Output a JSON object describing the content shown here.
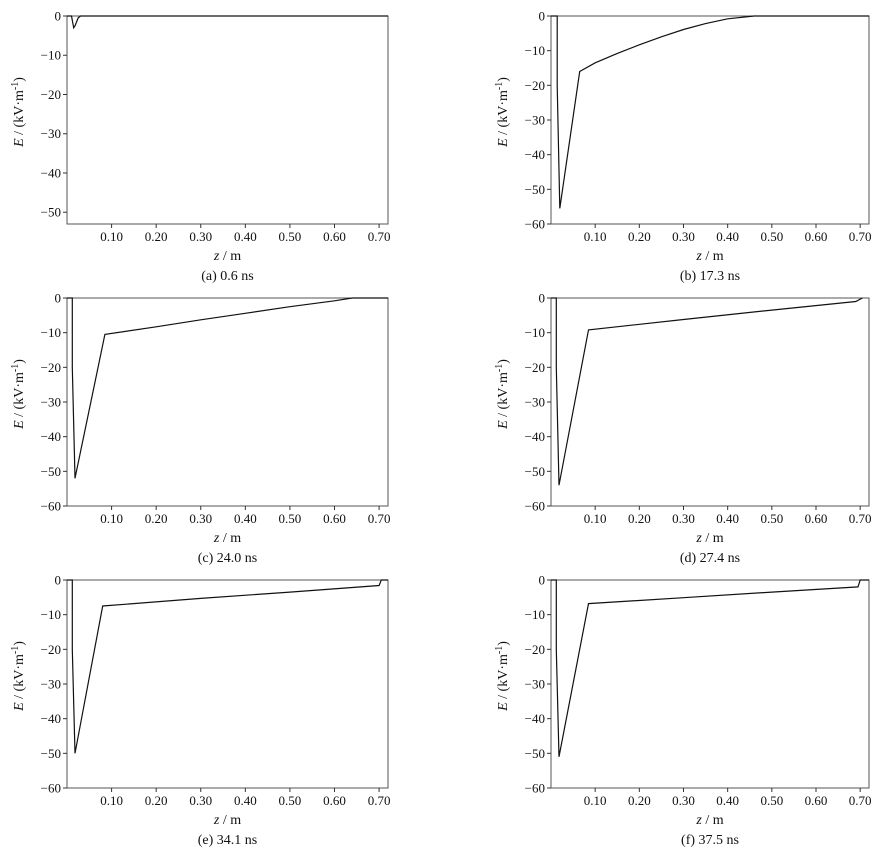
{
  "chart_data": [
    {
      "type": "line",
      "caption": "(a) 0.6 ns",
      "xlabel_var": "z",
      "xlabel_unit": " / m",
      "ylabel_var": "E",
      "ylabel_unit": " / (kV·m",
      "ylabel_exp": "-1",
      "ylabel_close": ")",
      "xlim": [
        0,
        0.72
      ],
      "ylim": [
        -53,
        0
      ],
      "xticks": [
        0.1,
        0.2,
        0.3,
        0.4,
        0.5,
        0.6,
        0.7
      ],
      "xtick_labels": [
        "0.10",
        "0.20",
        "0.30",
        "0.40",
        "0.50",
        "0.60",
        "0.70"
      ],
      "yticks": [
        0,
        -10,
        -20,
        -30,
        -40,
        -50
      ],
      "ytick_labels": [
        "0",
        "−10",
        "−20",
        "−30",
        "−40",
        "−50"
      ],
      "x": [
        0.0,
        0.01,
        0.015,
        0.018,
        0.025,
        0.03,
        0.72
      ],
      "y": [
        0,
        0,
        -3,
        -2.5,
        -0.5,
        0,
        0
      ]
    },
    {
      "type": "line",
      "caption": "(b) 17.3 ns",
      "xlabel_var": "z",
      "xlabel_unit": " / m",
      "ylabel_var": "E",
      "ylabel_unit": " / (kV·m",
      "ylabel_exp": "-1",
      "ylabel_close": ")",
      "xlim": [
        0,
        0.72
      ],
      "ylim": [
        -60,
        0
      ],
      "xticks": [
        0.1,
        0.2,
        0.3,
        0.4,
        0.5,
        0.6,
        0.7
      ],
      "xtick_labels": [
        "0.10",
        "0.20",
        "0.30",
        "0.40",
        "0.50",
        "0.60",
        "0.70"
      ],
      "yticks": [
        0,
        -10,
        -20,
        -30,
        -40,
        -50,
        -60
      ],
      "ytick_labels": [
        "0",
        "−10",
        "−20",
        "−30",
        "−40",
        "−50",
        "−60"
      ],
      "x": [
        0.0,
        0.014,
        0.014,
        0.02,
        0.065,
        0.1,
        0.15,
        0.2,
        0.25,
        0.3,
        0.35,
        0.4,
        0.46,
        0.72
      ],
      "y": [
        0,
        0,
        -20,
        -55.5,
        -16,
        -13.5,
        -10.8,
        -8.3,
        -6,
        -3.9,
        -2.2,
        -0.8,
        0,
        0
      ]
    },
    {
      "type": "line",
      "caption": "(c) 24.0 ns",
      "xlabel_var": "z",
      "xlabel_unit": " / m",
      "ylabel_var": "E",
      "ylabel_unit": " / (kV·m",
      "ylabel_exp": "-1",
      "ylabel_close": ")",
      "xlim": [
        0,
        0.72
      ],
      "ylim": [
        -60,
        0
      ],
      "xticks": [
        0.1,
        0.2,
        0.3,
        0.4,
        0.5,
        0.6,
        0.7
      ],
      "xtick_labels": [
        "0.10",
        "0.20",
        "0.30",
        "0.40",
        "0.50",
        "0.60",
        "0.70"
      ],
      "yticks": [
        0,
        -10,
        -20,
        -30,
        -40,
        -50,
        -60
      ],
      "ytick_labels": [
        "0",
        "−10",
        "−20",
        "−30",
        "−40",
        "−50",
        "−60"
      ],
      "x": [
        0.0,
        0.012,
        0.012,
        0.018,
        0.085,
        0.2,
        0.3,
        0.4,
        0.5,
        0.6,
        0.64,
        0.72
      ],
      "y": [
        0,
        0,
        -20,
        -52,
        -10.5,
        -8.3,
        -6.3,
        -4.4,
        -2.5,
        -0.8,
        0,
        0
      ]
    },
    {
      "type": "line",
      "caption": "(d) 27.4 ns",
      "xlabel_var": "z",
      "xlabel_unit": " / m",
      "ylabel_var": "E",
      "ylabel_unit": " / (kV·m",
      "ylabel_exp": "-1",
      "ylabel_close": ")",
      "xlim": [
        0,
        0.72
      ],
      "ylim": [
        -60,
        0
      ],
      "xticks": [
        0.1,
        0.2,
        0.3,
        0.4,
        0.5,
        0.6,
        0.7
      ],
      "xtick_labels": [
        "0.10",
        "0.20",
        "0.30",
        "0.40",
        "0.50",
        "0.60",
        "0.70"
      ],
      "yticks": [
        0,
        -10,
        -20,
        -30,
        -40,
        -50,
        -60
      ],
      "ytick_labels": [
        "0",
        "−10",
        "−20",
        "−30",
        "−40",
        "−50",
        "−60"
      ],
      "x": [
        0.0,
        0.012,
        0.012,
        0.018,
        0.085,
        0.3,
        0.5,
        0.69,
        0.705
      ],
      "y": [
        0,
        0,
        -20,
        -54,
        -9.2,
        -6.2,
        -3.5,
        -1,
        0
      ]
    },
    {
      "type": "line",
      "caption": "(e) 34.1 ns",
      "xlabel_var": "z",
      "xlabel_unit": " / m",
      "ylabel_var": "E",
      "ylabel_unit": " / (kV·m",
      "ylabel_exp": "-1",
      "ylabel_close": ")",
      "xlim": [
        0,
        0.72
      ],
      "ylim": [
        -60,
        0
      ],
      "xticks": [
        0.1,
        0.2,
        0.3,
        0.4,
        0.5,
        0.6,
        0.7
      ],
      "xtick_labels": [
        "0.10",
        "0.20",
        "0.30",
        "0.40",
        "0.50",
        "0.60",
        "0.70"
      ],
      "yticks": [
        0,
        -10,
        -20,
        -30,
        -40,
        -50,
        -60
      ],
      "ytick_labels": [
        "0",
        "−10",
        "−20",
        "−30",
        "−40",
        "−50",
        "−60"
      ],
      "x": [
        0.0,
        0.012,
        0.012,
        0.018,
        0.08,
        0.3,
        0.5,
        0.7,
        0.705,
        0.72
      ],
      "y": [
        0,
        0,
        -20,
        -50,
        -7.5,
        -5.3,
        -3.5,
        -1.6,
        0,
        0
      ]
    },
    {
      "type": "line",
      "caption": "(f) 37.5 ns",
      "xlabel_var": "z",
      "xlabel_unit": " / m",
      "ylabel_var": "E",
      "ylabel_unit": " / (kV·m",
      "ylabel_exp": "-1",
      "ylabel_close": ")",
      "xlim": [
        0,
        0.72
      ],
      "ylim": [
        -60,
        0
      ],
      "xticks": [
        0.1,
        0.2,
        0.3,
        0.4,
        0.5,
        0.6,
        0.7
      ],
      "xtick_labels": [
        "0.10",
        "0.20",
        "0.30",
        "0.40",
        "0.50",
        "0.60",
        "0.70"
      ],
      "yticks": [
        0,
        -10,
        -20,
        -30,
        -40,
        -50,
        -60
      ],
      "ytick_labels": [
        "0",
        "−10",
        "−20",
        "−30",
        "−40",
        "−50",
        "−60"
      ],
      "x": [
        0.0,
        0.012,
        0.012,
        0.018,
        0.085,
        0.3,
        0.5,
        0.695,
        0.7,
        0.72
      ],
      "y": [
        0,
        0,
        -20,
        -51,
        -6.8,
        -5.1,
        -3.5,
        -2,
        0,
        0
      ]
    }
  ]
}
